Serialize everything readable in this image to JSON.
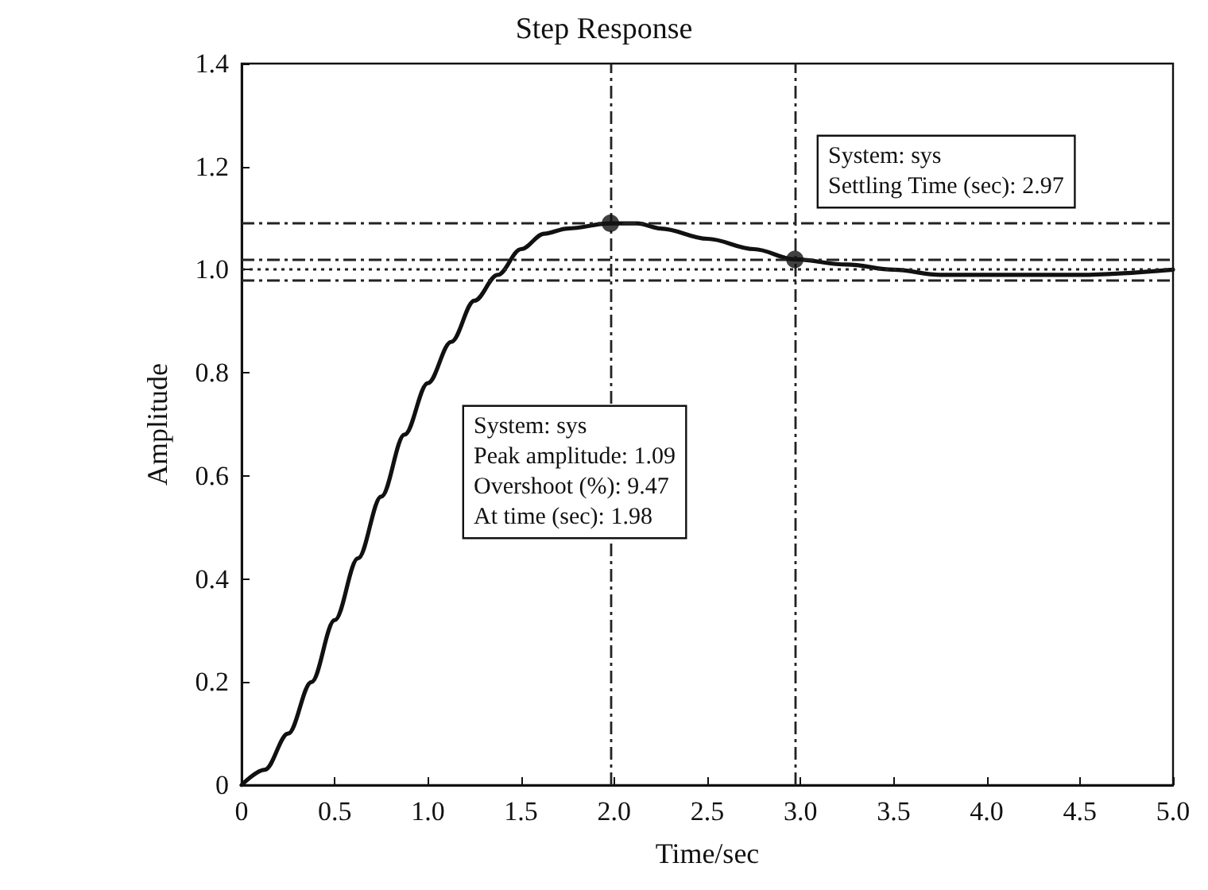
{
  "chart_data": {
    "type": "line",
    "title": "Step Response",
    "xlabel": "Time/sec",
    "ylabel": "Amplitude",
    "xlim": [
      0,
      5
    ],
    "xticks": [
      0,
      0.5,
      {
        "value": 1,
        "label": "1.0"
      },
      1.5,
      {
        "value": 2,
        "label": "2.0"
      },
      2.5,
      {
        "value": 3,
        "label": "3.0"
      },
      3.5,
      {
        "value": 4,
        "label": "4.0"
      },
      4.5,
      {
        "value": 5,
        "label": "5.0"
      }
    ],
    "ylim": [
      0,
      1.4
    ],
    "yticks": [
      0,
      0.2,
      0.4,
      0.6,
      0.8,
      {
        "value": 1,
        "label": "1.0"
      },
      1.2,
      1.4
    ],
    "grid": false,
    "series": [
      {
        "color": "#111111",
        "marker": "none",
        "line_style": "solid",
        "x": [
          0,
          0.125,
          0.25,
          0.375,
          0.5,
          0.625,
          0.75,
          0.875,
          1.0,
          1.125,
          1.25,
          1.375,
          1.5,
          1.625,
          1.75,
          1.98,
          2.125,
          2.25,
          2.5,
          2.75,
          2.97,
          3.25,
          3.5,
          3.75,
          4.0,
          4.5,
          5.0
        ],
        "values": [
          0,
          0.03,
          0.1,
          0.2,
          0.32,
          0.44,
          0.56,
          0.68,
          0.78,
          0.86,
          0.94,
          0.99,
          1.04,
          1.07,
          1.08,
          1.09,
          1.09,
          1.08,
          1.06,
          1.04,
          1.02,
          1.01,
          1.0,
          0.99,
          0.99,
          0.99,
          1.0
        ]
      },
      {
        "type": "scatter",
        "color": "#111111",
        "marker": "circle",
        "x": [
          1.98,
          2.97
        ],
        "values": [
          1.09,
          1.02
        ]
      }
    ],
    "ref_lines": [
      {
        "axis": "y",
        "value": 1.09,
        "line_style": "dashed"
      },
      {
        "axis": "y",
        "value": 1.02,
        "line_style": "dashed"
      },
      {
        "axis": "y",
        "value": 1.0,
        "line_style": "dotted"
      },
      {
        "axis": "y",
        "value": 0.98,
        "line_style": "dashed"
      },
      {
        "axis": "x",
        "value": 1.98,
        "line_style": "dashed"
      },
      {
        "axis": "x",
        "value": 2.97,
        "line_style": "dashed"
      }
    ],
    "annotations": [
      "System: sys\nPeak amplitude: 1.09\nOvershoot (%): 9.47\nAt time (sec): 1.98",
      "System: sys\nSettling Time (sec): 2.97"
    ]
  }
}
